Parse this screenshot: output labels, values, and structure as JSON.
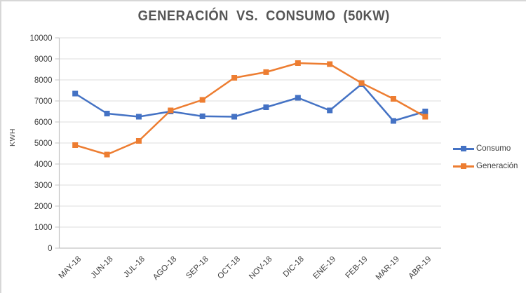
{
  "chart_data": {
    "type": "line",
    "title": "GENERACIÓN  VS.  CONSUMO  (50KW)",
    "ylabel": "KWH",
    "xlabel": "",
    "categories": [
      "MAY-18",
      "JUN-18",
      "JUL-18",
      "AGO-18",
      "SEP-18",
      "OCT-18",
      "NOV-18",
      "DIC-18",
      "ENE-19",
      "FEB-19",
      "MAR-19",
      "ABR-19"
    ],
    "series": [
      {
        "name": "Consumo",
        "color": "#4472C4",
        "marker": "square",
        "values": [
          7350,
          6400,
          6250,
          6500,
          6270,
          6250,
          6700,
          7150,
          6550,
          7800,
          6050,
          6500
        ]
      },
      {
        "name": "Generación",
        "color": "#ED7D31",
        "marker": "square",
        "values": [
          4900,
          4450,
          5100,
          6550,
          7050,
          8100,
          8370,
          8800,
          8750,
          7850,
          7100,
          6250
        ]
      }
    ],
    "ylim": [
      0,
      10000
    ],
    "y_ticks": [
      0,
      1000,
      2000,
      3000,
      4000,
      5000,
      6000,
      7000,
      8000,
      9000,
      10000
    ],
    "grid": true,
    "legend_position": "right",
    "x_label_rotation": -45
  },
  "colors": {
    "gridline": "#DCDCDC",
    "axis": "#C3C3C3",
    "tick_text": "#3f3f3f",
    "title_text": "#555555"
  }
}
